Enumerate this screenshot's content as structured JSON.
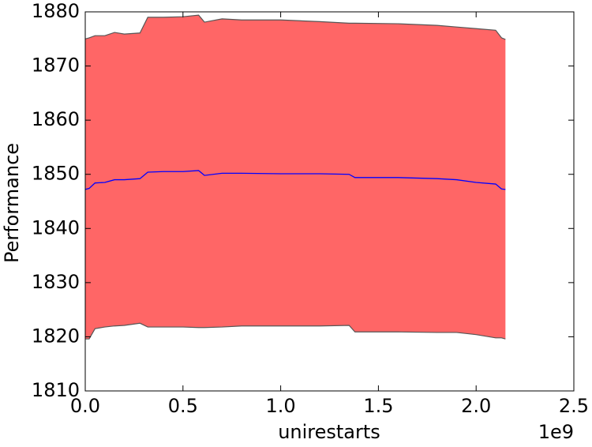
{
  "chart_data": {
    "type": "line",
    "xlabel": "unirestarts",
    "ylabel": "Performance",
    "x_offset_label": "1e9",
    "x": [
      0,
      0.02,
      0.05,
      0.1,
      0.15,
      0.2,
      0.28,
      0.32,
      0.4,
      0.5,
      0.58,
      0.61,
      0.7,
      0.8,
      1.0,
      1.2,
      1.35,
      1.38,
      1.6,
      1.8,
      1.9,
      2.0,
      2.1,
      2.13,
      2.15
    ],
    "series": [
      {
        "color": "#0000ff",
        "values": [
          1847.2,
          1847.4,
          1848.4,
          1848.5,
          1849.0,
          1849.0,
          1849.2,
          1850.4,
          1850.5,
          1850.5,
          1850.7,
          1849.8,
          1850.2,
          1850.2,
          1850.1,
          1850.1,
          1850.0,
          1849.4,
          1849.4,
          1849.2,
          1849.0,
          1848.5,
          1848.2,
          1847.3,
          1847.2
        ]
      }
    ],
    "band": {
      "color": "#ff6666",
      "edge_color": "#555555",
      "upper": [
        1875.0,
        1875.2,
        1875.6,
        1875.6,
        1876.2,
        1875.9,
        1876.1,
        1879.0,
        1879.0,
        1879.1,
        1879.4,
        1878.1,
        1878.7,
        1878.5,
        1878.5,
        1878.2,
        1877.9,
        1877.9,
        1877.8,
        1877.5,
        1877.2,
        1876.9,
        1876.6,
        1875.2,
        1874.9
      ],
      "lower": [
        1819.6,
        1819.6,
        1821.5,
        1821.8,
        1822.0,
        1822.1,
        1822.5,
        1821.8,
        1821.8,
        1821.8,
        1821.7,
        1821.7,
        1821.8,
        1822.0,
        1822.0,
        1822.0,
        1822.1,
        1820.9,
        1820.9,
        1820.8,
        1820.8,
        1820.4,
        1819.8,
        1819.8,
        1819.6
      ]
    },
    "xlim": [
      0,
      2.5
    ],
    "xticks": [
      {
        "value": 0,
        "label": "0.0"
      },
      0.5,
      {
        "value": 1,
        "label": "1.0"
      },
      1.5,
      {
        "value": 2,
        "label": "2.0"
      },
      2.5
    ],
    "ylim": [
      1810,
      1880
    ],
    "yticks": [
      1810,
      1820,
      1830,
      1840,
      1850,
      1860,
      1870,
      1880
    ]
  }
}
